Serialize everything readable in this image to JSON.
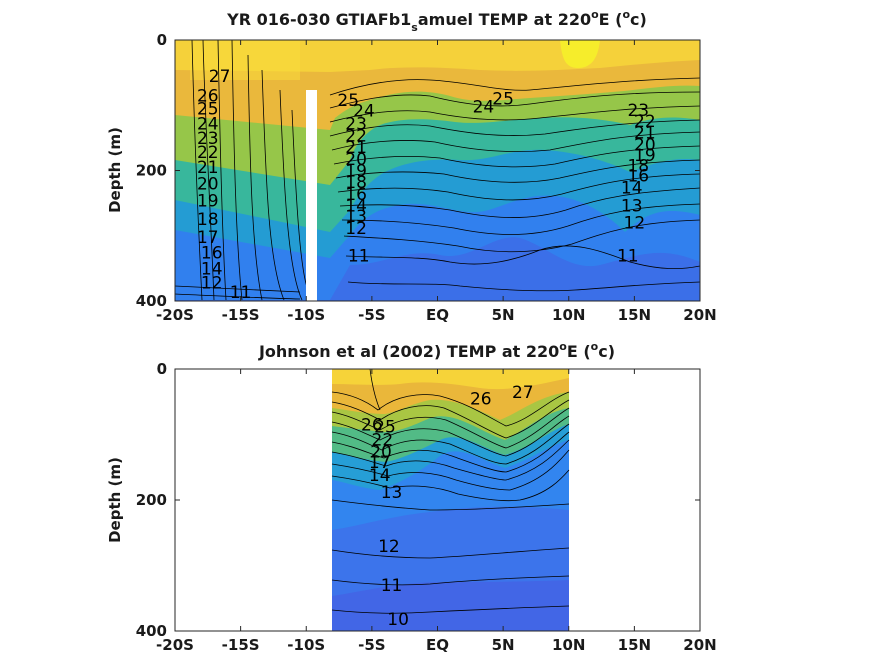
{
  "chart_data": [
    {
      "type": "heatmap",
      "title_parts": [
        "YR 016-030 GTIAFb1",
        "s",
        "amuel TEMP at 220",
        "o",
        "E (",
        "o",
        "c)"
      ],
      "title": "YR 016-030 GTIAFb1_samuel TEMP at 220°E (°c)",
      "xlabel": "",
      "ylabel": "Depth (m)",
      "x_ticks": [
        -20,
        -15,
        -10,
        -5,
        0,
        5,
        10,
        15,
        20
      ],
      "x_tick_labels": [
        "-20S",
        "-15S",
        "-10S",
        "-5S",
        "EQ",
        "5N",
        "10N",
        "15N",
        "20N"
      ],
      "y_ticks": [
        0,
        200,
        400
      ],
      "y_tick_labels": [
        "0",
        "200",
        "400"
      ],
      "xlim": [
        -20,
        20
      ],
      "ylim": [
        400,
        0
      ],
      "data_extent": [
        -20,
        20
      ],
      "masked_strip": [
        -10.3,
        -9.9,
        80,
        400
      ],
      "contour_levels": [
        11,
        12,
        13,
        14,
        15,
        16,
        17,
        18,
        19,
        20,
        21,
        22,
        23,
        24,
        25,
        26,
        27
      ],
      "contour_labels": [
        {
          "text": "27",
          "x": -16.6,
          "y": 55
        },
        {
          "text": "26",
          "x": -17.5,
          "y": 85
        },
        {
          "text": "25",
          "x": -17.5,
          "y": 105
        },
        {
          "text": "24",
          "x": -17.5,
          "y": 128
        },
        {
          "text": "23",
          "x": -17.5,
          "y": 150
        },
        {
          "text": "22",
          "x": -17.5,
          "y": 172
        },
        {
          "text": "21",
          "x": -17.5,
          "y": 195
        },
        {
          "text": "20",
          "x": -17.5,
          "y": 220
        },
        {
          "text": "19",
          "x": -17.5,
          "y": 246
        },
        {
          "text": "18",
          "x": -17.5,
          "y": 274
        },
        {
          "text": "17",
          "x": -17.5,
          "y": 302
        },
        {
          "text": "16",
          "x": -17.2,
          "y": 326
        },
        {
          "text": "14",
          "x": -17.2,
          "y": 350
        },
        {
          "text": "12",
          "x": -17.2,
          "y": 372
        },
        {
          "text": "11",
          "x": -15.0,
          "y": 386
        },
        {
          "text": "25",
          "x": -6.8,
          "y": 92
        },
        {
          "text": "24",
          "x": -5.6,
          "y": 108
        },
        {
          "text": "23",
          "x": -6.2,
          "y": 128
        },
        {
          "text": "22",
          "x": -6.2,
          "y": 146
        },
        {
          "text": "21",
          "x": -6.2,
          "y": 164
        },
        {
          "text": "20",
          "x": -6.2,
          "y": 182
        },
        {
          "text": "19",
          "x": -6.2,
          "y": 200
        },
        {
          "text": "18",
          "x": -6.2,
          "y": 218
        },
        {
          "text": "16",
          "x": -6.2,
          "y": 236
        },
        {
          "text": "14",
          "x": -6.2,
          "y": 254
        },
        {
          "text": "13",
          "x": -6.2,
          "y": 270
        },
        {
          "text": "12",
          "x": -6.2,
          "y": 288
        },
        {
          "text": "11",
          "x": -6.0,
          "y": 330
        },
        {
          "text": "25",
          "x": 5.0,
          "y": 90
        },
        {
          "text": "24",
          "x": 3.5,
          "y": 102
        },
        {
          "text": "23",
          "x": 15.3,
          "y": 107
        },
        {
          "text": "22",
          "x": 15.8,
          "y": 124
        },
        {
          "text": "21",
          "x": 15.8,
          "y": 142
        },
        {
          "text": "20",
          "x": 15.8,
          "y": 160
        },
        {
          "text": "19",
          "x": 15.8,
          "y": 176
        },
        {
          "text": "18",
          "x": 15.3,
          "y": 192
        },
        {
          "text": "16",
          "x": 15.3,
          "y": 208
        },
        {
          "text": "14",
          "x": 14.8,
          "y": 226
        },
        {
          "text": "13",
          "x": 14.8,
          "y": 254
        },
        {
          "text": "12",
          "x": 15.0,
          "y": 280
        },
        {
          "text": "11",
          "x": 14.5,
          "y": 330
        }
      ]
    },
    {
      "type": "heatmap",
      "title_parts": [
        "Johnson et al (2002) TEMP at 220",
        "o",
        "E (",
        "o",
        "c)"
      ],
      "title": "Johnson et al (2002) TEMP at 220°E (°c)",
      "xlabel": "",
      "ylabel": "Depth (m)",
      "x_ticks": [
        -20,
        -15,
        -10,
        -5,
        0,
        5,
        10,
        15,
        20
      ],
      "x_tick_labels": [
        "-20S",
        "-15S",
        "-10S",
        "-5S",
        "EQ",
        "5N",
        "10N",
        "15N",
        "20N"
      ],
      "y_ticks": [
        0,
        200,
        400
      ],
      "y_tick_labels": [
        "0",
        "200",
        "400"
      ],
      "xlim": [
        -20,
        20
      ],
      "ylim": [
        400,
        0
      ],
      "data_extent": [
        -8,
        10
      ],
      "contour_levels": [
        10,
        11,
        12,
        13,
        14,
        15,
        16,
        17,
        18,
        19,
        20,
        21,
        22,
        23,
        24,
        25,
        26,
        27
      ],
      "contour_labels": [
        {
          "text": "27",
          "x": 6.5,
          "y": 35
        },
        {
          "text": "26",
          "x": 3.3,
          "y": 45
        },
        {
          "text": "26",
          "x": -5.0,
          "y": 85
        },
        {
          "text": "25",
          "x": -4.0,
          "y": 88
        },
        {
          "text": "22",
          "x": -4.2,
          "y": 108
        },
        {
          "text": "20",
          "x": -4.3,
          "y": 126
        },
        {
          "text": "17",
          "x": -4.4,
          "y": 142
        },
        {
          "text": "14",
          "x": -4.4,
          "y": 162
        },
        {
          "text": "13",
          "x": -3.5,
          "y": 188
        },
        {
          "text": "12",
          "x": -3.7,
          "y": 270
        },
        {
          "text": "11",
          "x": -3.5,
          "y": 330
        },
        {
          "text": "10",
          "x": -3.0,
          "y": 382
        }
      ]
    }
  ]
}
